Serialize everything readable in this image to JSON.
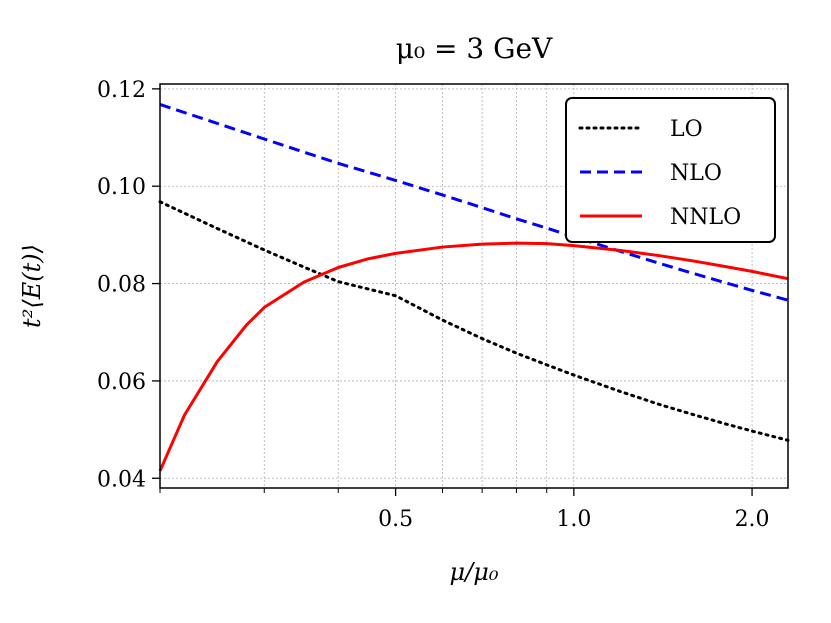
{
  "chart_data": {
    "type": "line",
    "title": "μ₀ = 3 GeV",
    "xlabel": "μ/μ₀",
    "ylabel": "t²⟨E(t)⟩",
    "xscale": "log",
    "xlim": [
      0.2,
      2.3
    ],
    "ylim": [
      0.038,
      0.121
    ],
    "xticks": [
      0.5,
      1.0,
      2.0
    ],
    "xtick_labels": [
      "0.5",
      "1.0",
      "2.0"
    ],
    "yticks": [
      0.04,
      0.06,
      0.08,
      0.1,
      0.12
    ],
    "ytick_labels": [
      "0.04",
      "0.06",
      "0.08",
      "0.10",
      "0.12"
    ],
    "grid": true,
    "legend_position": "top-right",
    "series": [
      {
        "name": "LO",
        "color": "#000000",
        "style": "dotted",
        "x": [
          0.2,
          0.25,
          0.3,
          0.35,
          0.4,
          0.5,
          0.6,
          0.7,
          0.8,
          0.9,
          1.0,
          1.2,
          1.4,
          1.6,
          1.8,
          2.0,
          2.3
        ],
        "y": [
          0.0968,
          0.0913,
          0.0869,
          0.0834,
          0.0804,
          0.0775,
          0.0725,
          0.0687,
          0.0657,
          0.0633,
          0.0612,
          0.0578,
          0.0551,
          0.053,
          0.0512,
          0.0497,
          0.0478
        ]
      },
      {
        "name": "NLO",
        "color": "#0000ff",
        "style": "dashed",
        "x": [
          0.2,
          0.25,
          0.3,
          0.35,
          0.4,
          0.5,
          0.6,
          0.7,
          0.8,
          0.9,
          1.0,
          1.2,
          1.4,
          1.6,
          1.8,
          2.0,
          2.3
        ],
        "y": [
          0.1168,
          0.1129,
          0.1097,
          0.107,
          0.1047,
          0.1012,
          0.0982,
          0.0956,
          0.0933,
          0.0914,
          0.0896,
          0.0866,
          0.0841,
          0.082,
          0.0802,
          0.0786,
          0.0766
        ]
      },
      {
        "name": "NNLO",
        "color": "#ff0000",
        "style": "solid",
        "x": [
          0.2,
          0.22,
          0.25,
          0.28,
          0.3,
          0.35,
          0.4,
          0.45,
          0.5,
          0.6,
          0.7,
          0.8,
          0.9,
          1.0,
          1.2,
          1.4,
          1.6,
          1.8,
          2.0,
          2.3
        ],
        "y": [
          0.0415,
          0.053,
          0.064,
          0.0715,
          0.0751,
          0.0803,
          0.0833,
          0.0851,
          0.0862,
          0.0875,
          0.0881,
          0.0883,
          0.0882,
          0.0878,
          0.0868,
          0.0857,
          0.0846,
          0.0835,
          0.0825,
          0.081
        ]
      }
    ]
  }
}
